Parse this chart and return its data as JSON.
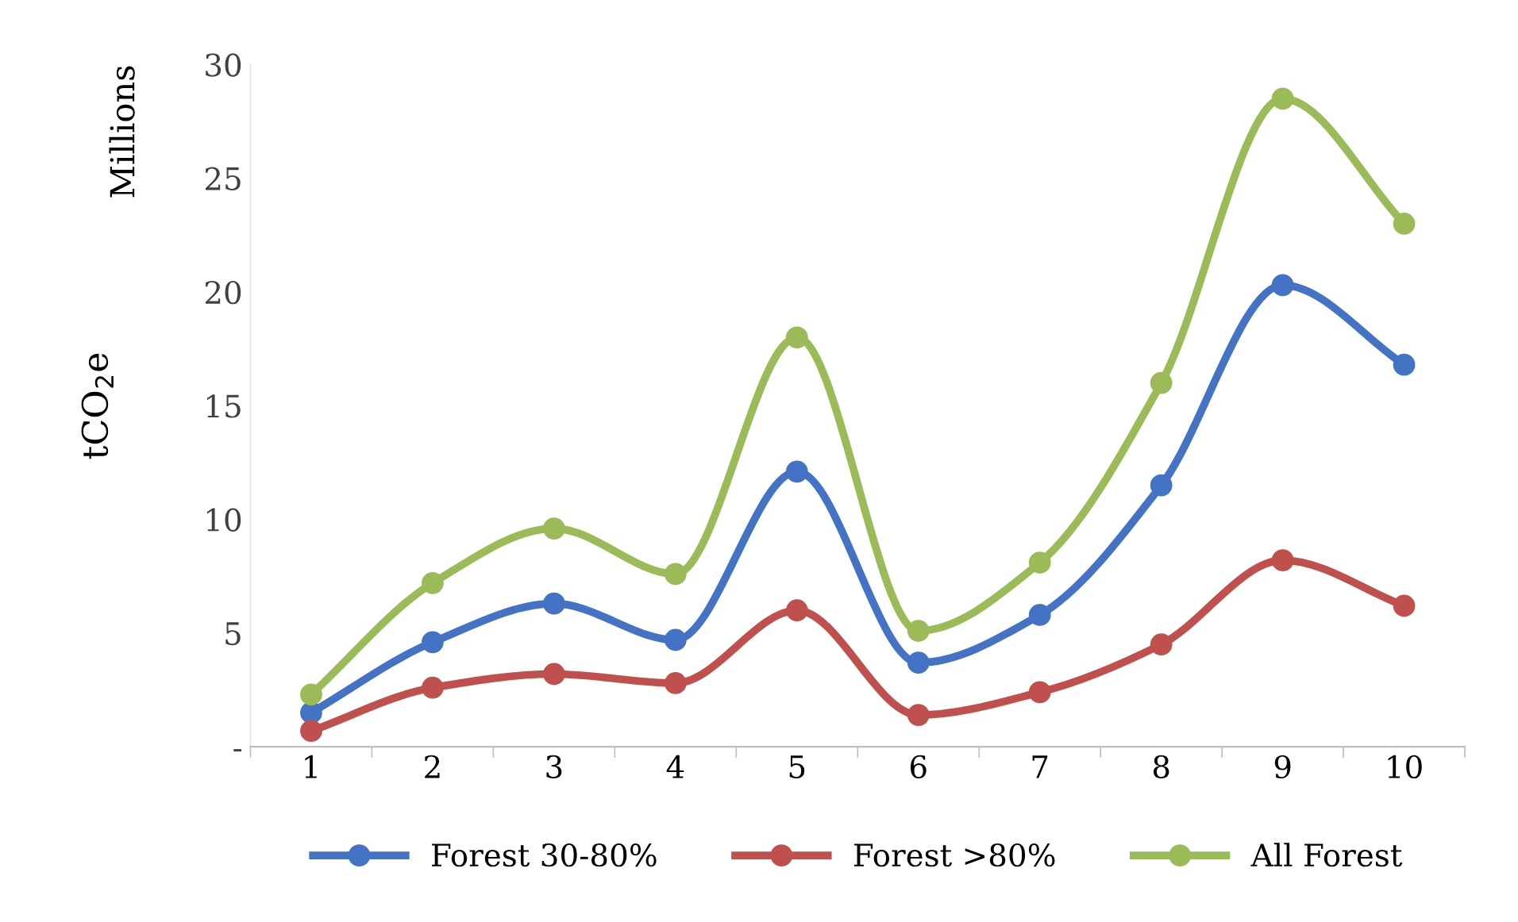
{
  "chart_data": {
    "type": "line",
    "ylabel": "tCO$_{2}$e",
    "annotations": [
      "Millions"
    ],
    "categories": [
      "1",
      "2",
      "3",
      "4",
      "5",
      "6",
      "7",
      "8",
      "9",
      "10"
    ],
    "series": [
      {
        "name": "Forest 30-80%",
        "color": "#4472c4",
        "values": [
          1.5,
          4.6,
          6.3,
          4.7,
          12.1,
          3.7,
          5.8,
          11.5,
          20.3,
          16.8
        ]
      },
      {
        "name": "Forest >80%",
        "color": "#c0504d",
        "values": [
          0.7,
          2.6,
          3.2,
          2.8,
          6.0,
          1.4,
          2.4,
          4.5,
          8.2,
          6.2
        ]
      },
      {
        "name": "All Forest",
        "color": "#9bbb59",
        "values": [
          2.3,
          7.2,
          9.6,
          7.6,
          18.0,
          5.1,
          8.1,
          16.0,
          28.5,
          23.0
        ]
      }
    ],
    "ylim": [
      0,
      30
    ],
    "yticks": [
      {
        "value": 0,
        "label": "-"
      },
      5,
      10,
      15,
      20,
      25,
      30
    ],
    "marker": "circle",
    "line_style": "solid",
    "legend": "bottom",
    "grid": false
  }
}
